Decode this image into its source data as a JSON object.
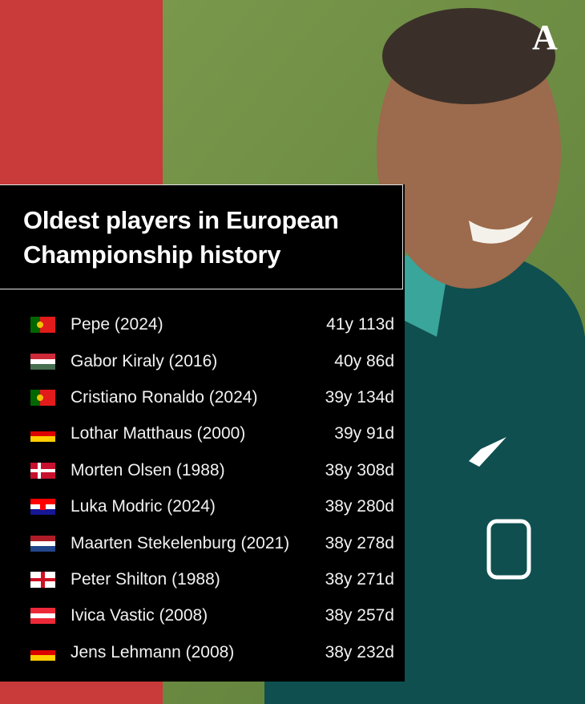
{
  "logo": "A",
  "title": "Oldest players in European Championship history",
  "rows": [
    [
      "Pepe (2024)",
      "41y 113d"
    ],
    [
      "Gabor Kiraly (2016)",
      "40y 86d"
    ],
    [
      "Cristiano Ronaldo (2024)",
      "39y 134d"
    ],
    [
      "Lothar Matthaus (2000)",
      "39y 91d"
    ],
    [
      "Morten Olsen (1988)",
      "38y 308d"
    ],
    [
      "Luka Modric (2024)",
      "38y 280d"
    ],
    [
      "Maarten Stekelenburg (2021)",
      "38y 278d"
    ],
    [
      "Peter Shilton (1988)",
      "38y 271d"
    ],
    [
      "Ivica Vastic (2008)",
      "38y 257d"
    ],
    [
      "Jens Lehmann (2008)",
      "38y 232d"
    ]
  ]
}
